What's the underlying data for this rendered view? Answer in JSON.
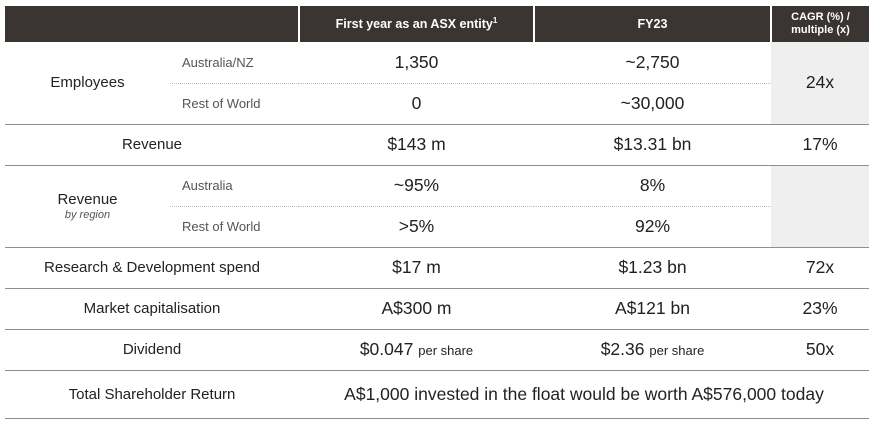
{
  "header": {
    "first_year": "First year as an ASX entity",
    "first_year_sup": "1",
    "fy23": "FY23",
    "cagr_line1": "CAGR (%) /",
    "cagr_line2": "multiple (x)"
  },
  "employees": {
    "label": "Employees",
    "rows": [
      {
        "region": "Australia/NZ",
        "first": "1,350",
        "fy23": "~2,750"
      },
      {
        "region": "Rest of World",
        "first": "0",
        "fy23": "~30,000"
      }
    ],
    "cagr": "24x"
  },
  "revenue": {
    "label": "Revenue",
    "first": "$143 m",
    "fy23": "$13.31 bn",
    "cagr": "17%"
  },
  "revenue_region": {
    "label": "Revenue",
    "note": "by region",
    "rows": [
      {
        "region": "Australia",
        "first": "~95%",
        "fy23": "8%"
      },
      {
        "region": "Rest of World",
        "first": ">5%",
        "fy23": "92%"
      }
    ]
  },
  "rnd": {
    "label": "Research & Development spend",
    "first": "$17 m",
    "fy23": "$1.23 bn",
    "cagr": "72x"
  },
  "market_cap": {
    "label": "Market capitalisation",
    "first": "A$300 m",
    "fy23": "A$121 bn",
    "cagr": "23%"
  },
  "dividend": {
    "label": "Dividend",
    "first": "$0.047",
    "fy23": "$2.36",
    "unit": "per share",
    "cagr": "50x"
  },
  "tsr": {
    "label": "Total Shareholder Return",
    "text": "A$1,000 invested in the float would be worth A$576,000 today"
  }
}
